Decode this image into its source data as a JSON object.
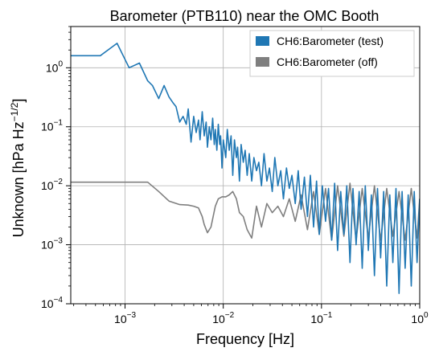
{
  "chart_data": {
    "type": "line",
    "title": "Barometer (PTB110) near the OMC Booth",
    "xlabel": "Frequency [Hz]",
    "ylabel": "Unknown [hPa Hz−1/2]",
    "ylabel_parts": {
      "main": "Unknown [hPa Hz",
      "sup": "−1/2",
      "close": "]"
    },
    "x_scale": "log",
    "y_scale": "log",
    "xlim": [
      0.00028,
      1.0
    ],
    "ylim": [
      0.0001,
      5.0
    ],
    "grid": true,
    "legend_position": "top-right",
    "x_ticks": [
      {
        "value": 0.001,
        "base": "10",
        "exp": "−3"
      },
      {
        "value": 0.01,
        "base": "10",
        "exp": "−2"
      },
      {
        "value": 0.1,
        "base": "10",
        "exp": "−1"
      },
      {
        "value": 1,
        "base": "10",
        "exp": "0"
      }
    ],
    "y_ticks": [
      {
        "value": 0.0001,
        "base": "10",
        "exp": "−4"
      },
      {
        "value": 0.001,
        "base": "10",
        "exp": "−3"
      },
      {
        "value": 0.01,
        "base": "10",
        "exp": "−2"
      },
      {
        "value": 0.1,
        "base": "10",
        "exp": "−1"
      },
      {
        "value": 1,
        "base": "10",
        "exp": "0"
      }
    ],
    "series": [
      {
        "name": "CH6:Barometer (test)",
        "color": "#1f77b4",
        "x": [
          0.00028,
          0.00056,
          0.00083,
          0.0011,
          0.0014,
          0.0017,
          0.0019,
          0.0022,
          0.0025,
          0.0028,
          0.0031,
          0.0033,
          0.0036,
          0.0039,
          0.0042,
          0.0044,
          0.0047,
          0.005,
          0.0053,
          0.0056,
          0.0058,
          0.0061,
          0.0064,
          0.0067,
          0.0069,
          0.0072,
          0.0075,
          0.0078,
          0.0081,
          0.0083,
          0.0086,
          0.0089,
          0.0092,
          0.0094,
          0.0097,
          0.01,
          0.0106,
          0.011,
          0.0115,
          0.012,
          0.0125,
          0.013,
          0.0136,
          0.014,
          0.0146,
          0.0152,
          0.016,
          0.0167,
          0.0175,
          0.0184,
          0.0195,
          0.0205,
          0.0218,
          0.023,
          0.0245,
          0.026,
          0.0278,
          0.0295,
          0.0315,
          0.0335,
          0.036,
          0.0385,
          0.041,
          0.044,
          0.047,
          0.05,
          0.054,
          0.058,
          0.062,
          0.067,
          0.072,
          0.077,
          0.083,
          0.089,
          0.095,
          0.102,
          0.11,
          0.118,
          0.127,
          0.136,
          0.146,
          0.157,
          0.169,
          0.181,
          0.195,
          0.209,
          0.225,
          0.242,
          0.26,
          0.279,
          0.3,
          0.322,
          0.346,
          0.372,
          0.4,
          0.43,
          0.462,
          0.496,
          0.533,
          0.573,
          0.616,
          0.662,
          0.711,
          0.764,
          0.82,
          0.88,
          0.94,
          1.0
        ],
        "y": [
          1.6,
          1.6,
          2.6,
          1.0,
          1.2,
          0.6,
          0.5,
          0.3,
          0.5,
          0.32,
          0.25,
          0.22,
          0.12,
          0.15,
          0.11,
          0.2,
          0.055,
          0.15,
          0.08,
          0.13,
          0.06,
          0.18,
          0.07,
          0.12,
          0.045,
          0.1,
          0.06,
          0.14,
          0.05,
          0.09,
          0.04,
          0.11,
          0.05,
          0.07,
          0.02,
          0.06,
          0.03,
          0.09,
          0.04,
          0.07,
          0.015,
          0.06,
          0.03,
          0.045,
          0.012,
          0.05,
          0.025,
          0.04,
          0.015,
          0.035,
          0.012,
          0.03,
          0.018,
          0.025,
          0.01,
          0.035,
          0.012,
          0.02,
          0.008,
          0.03,
          0.01,
          0.018,
          0.006,
          0.02,
          0.009,
          0.015,
          0.005,
          0.018,
          0.004,
          0.014,
          0.003,
          0.015,
          0.002,
          0.012,
          0.0015,
          0.01,
          0.0025,
          0.009,
          0.0012,
          0.011,
          0.0008,
          0.008,
          0.0015,
          0.01,
          0.0005,
          0.009,
          0.001,
          0.008,
          0.0004,
          0.01,
          0.0008,
          0.007,
          0.0003,
          0.009,
          0.0006,
          0.008,
          0.0002,
          0.007,
          0.0005,
          0.009,
          0.00015,
          0.008,
          0.0004,
          0.007,
          0.0002,
          0.008,
          0.0005,
          0.006
        ]
      },
      {
        "name": "CH6:Barometer (off)",
        "color": "#7f7f7f",
        "x": [
          0.00028,
          0.00056,
          0.00083,
          0.0011,
          0.0014,
          0.0017,
          0.0022,
          0.0028,
          0.0036,
          0.0044,
          0.005,
          0.0056,
          0.0061,
          0.0064,
          0.0069,
          0.0075,
          0.0083,
          0.0089,
          0.0097,
          0.0106,
          0.0115,
          0.0125,
          0.0136,
          0.0146,
          0.016,
          0.0175,
          0.0195,
          0.0218,
          0.0245,
          0.0278,
          0.0315,
          0.036,
          0.041,
          0.047,
          0.054,
          0.062,
          0.072,
          0.083,
          0.095,
          0.11,
          0.127,
          0.146,
          0.169,
          0.195,
          0.225,
          0.26,
          0.3,
          0.346,
          0.4,
          0.462,
          0.533,
          0.616,
          0.711,
          0.82,
          0.94,
          1.0
        ],
        "y": [
          0.0115,
          0.0115,
          0.0115,
          0.0115,
          0.0115,
          0.0115,
          0.008,
          0.0055,
          0.0048,
          0.0047,
          0.0045,
          0.0042,
          0.003,
          0.0022,
          0.0016,
          0.002,
          0.0045,
          0.006,
          0.0065,
          0.0065,
          0.007,
          0.008,
          0.006,
          0.0035,
          0.003,
          0.0018,
          0.0013,
          0.0045,
          0.002,
          0.005,
          0.0035,
          0.0045,
          0.003,
          0.006,
          0.0025,
          0.007,
          0.0018,
          0.008,
          0.0015,
          0.009,
          0.0012,
          0.01,
          0.0014,
          0.011,
          0.0012,
          0.009,
          0.0013,
          0.01,
          0.0012,
          0.009,
          0.0014,
          0.008,
          0.0012,
          0.009,
          0.0013,
          0.006
        ]
      }
    ]
  }
}
